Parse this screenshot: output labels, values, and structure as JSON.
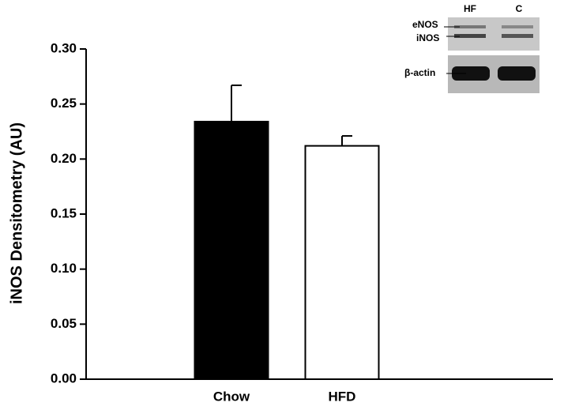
{
  "chart_data": {
    "type": "bar",
    "y_label": "iNOS Densitometry (AU)",
    "categories": [
      "Chow",
      "HFD"
    ],
    "values": [
      0.234,
      0.212
    ],
    "errors": [
      0.033,
      0.009
    ],
    "colors": [
      "#000000",
      "#ffffff"
    ],
    "ylim": [
      0,
      0.3
    ],
    "yticks": [
      {
        "value": 0,
        "label": "0.00"
      },
      {
        "value": 0.05,
        "label": "0.05"
      },
      {
        "value": 0.1,
        "label": "0.10"
      },
      {
        "value": 0.15,
        "label": "0.15"
      },
      {
        "value": 0.2,
        "label": "0.20"
      },
      {
        "value": 0.25,
        "label": "0.25"
      },
      {
        "value": 0.3,
        "label": "0.30"
      }
    ],
    "grid": false
  },
  "blot": {
    "lanes": [
      "HF",
      "C"
    ],
    "bands": [
      "eNOS",
      "iNOS",
      "β-actin"
    ]
  }
}
